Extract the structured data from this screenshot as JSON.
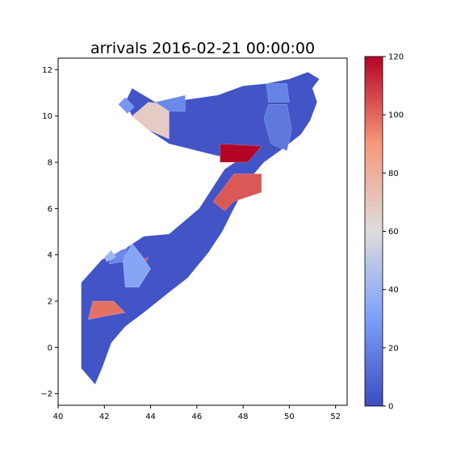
{
  "chart_data": {
    "type": "choropleth-map",
    "title": "arrivals 2016-02-21 00:00:00",
    "x_ticks": [
      40,
      42,
      44,
      46,
      48,
      50,
      52
    ],
    "y_ticks": [
      -2,
      0,
      2,
      4,
      6,
      8,
      10,
      12
    ],
    "xlim": [
      40,
      52.5
    ],
    "ylim": [
      -2.5,
      12.5
    ],
    "colormap": "coolwarm",
    "colorbar": {
      "min": 0,
      "max": 120,
      "ticks": [
        0,
        20,
        40,
        60,
        80,
        100,
        120
      ]
    },
    "regions": [
      {
        "coords": [
          [
            43.2,
            11.2
          ],
          [
            44.2,
            10.6
          ],
          [
            45.5,
            10.7
          ],
          [
            46.9,
            10.9
          ],
          [
            48.0,
            11.3
          ],
          [
            49.0,
            11.4
          ],
          [
            50.0,
            11.6
          ],
          [
            50.8,
            11.9
          ],
          [
            51.3,
            11.6
          ],
          [
            51.0,
            11.2
          ],
          [
            51.2,
            10.6
          ],
          [
            50.9,
            9.8
          ],
          [
            50.5,
            9.2
          ],
          [
            49.6,
            8.5
          ],
          [
            48.9,
            8.0
          ],
          [
            48.3,
            7.3
          ],
          [
            47.6,
            6.0
          ],
          [
            47.1,
            5.0
          ],
          [
            46.5,
            4.1
          ],
          [
            45.6,
            3.0
          ],
          [
            44.7,
            2.3
          ],
          [
            43.7,
            1.5
          ],
          [
            42.9,
            0.9
          ],
          [
            42.3,
            0.2
          ],
          [
            41.9,
            -0.9
          ],
          [
            41.6,
            -1.6
          ],
          [
            41.0,
            -0.9
          ],
          [
            41.0,
            1.3
          ],
          [
            41.0,
            2.8
          ],
          [
            41.9,
            3.8
          ],
          [
            42.8,
            4.2
          ],
          [
            43.7,
            4.8
          ],
          [
            44.8,
            4.9
          ],
          [
            46.1,
            6.0
          ],
          [
            47.2,
            7.7
          ],
          [
            47.8,
            8.1
          ],
          [
            46.8,
            8.3
          ],
          [
            45.6,
            8.6
          ],
          [
            44.8,
            8.8
          ],
          [
            43.9,
            9.4
          ],
          [
            43.2,
            10.0
          ],
          [
            42.9,
            10.6
          ]
        ],
        "value": 3
      },
      {
        "coords": [
          [
            47.0,
            8.0
          ],
          [
            48.2,
            8.0
          ],
          [
            48.8,
            8.7
          ],
          [
            47.0,
            8.8
          ]
        ],
        "value": 120
      },
      {
        "coords": [
          [
            46.7,
            6.3
          ],
          [
            47.6,
            7.5
          ],
          [
            48.8,
            7.5
          ],
          [
            48.8,
            6.7
          ],
          [
            47.6,
            6.3
          ],
          [
            47.2,
            5.9
          ]
        ],
        "value": 103
      },
      {
        "coords": [
          [
            43.4,
            3.7
          ],
          [
            43.9,
            3.9
          ],
          [
            43.7,
            3.5
          ],
          [
            43.2,
            3.5
          ]
        ],
        "value": 103
      },
      {
        "coords": [
          [
            41.3,
            1.2
          ],
          [
            42.3,
            1.4
          ],
          [
            42.9,
            1.5
          ],
          [
            42.4,
            2.0
          ],
          [
            41.5,
            2.0
          ]
        ],
        "value": 98
      },
      {
        "coords": [
          [
            43.9,
            10.6
          ],
          [
            44.8,
            10.5
          ],
          [
            44.8,
            9.0
          ],
          [
            43.9,
            9.4
          ],
          [
            43.2,
            10.0
          ]
        ],
        "value": 68
      },
      {
        "coords": [
          [
            44.2,
            10.6
          ],
          [
            45.5,
            10.9
          ],
          [
            45.5,
            10.2
          ],
          [
            44.8,
            10.2
          ]
        ],
        "value": 22
      },
      {
        "coords": [
          [
            49.0,
            11.4
          ],
          [
            49.9,
            11.4
          ],
          [
            50.0,
            10.6
          ],
          [
            49.1,
            10.6
          ]
        ],
        "value": 20
      },
      {
        "coords": [
          [
            49.1,
            10.5
          ],
          [
            49.9,
            10.5
          ],
          [
            50.1,
            9.4
          ],
          [
            49.9,
            8.5
          ],
          [
            49.2,
            8.8
          ],
          [
            48.9,
            9.9
          ]
        ],
        "value": 16
      },
      {
        "coords": [
          [
            42.9,
            10.8
          ],
          [
            43.3,
            10.4
          ],
          [
            43.0,
            10.1
          ],
          [
            42.6,
            10.5
          ]
        ],
        "value": 27
      },
      {
        "coords": [
          [
            42.8,
            3.8
          ],
          [
            43.2,
            4.5
          ],
          [
            43.6,
            4.0
          ],
          [
            44.0,
            3.4
          ],
          [
            43.5,
            2.6
          ],
          [
            42.9,
            2.6
          ]
        ],
        "value": 33
      },
      {
        "coords": [
          [
            42.2,
            3.6
          ],
          [
            42.8,
            3.7
          ],
          [
            43.0,
            4.3
          ],
          [
            42.7,
            4.2
          ],
          [
            42.3,
            3.9
          ]
        ],
        "value": 22
      },
      {
        "coords": [
          [
            42.0,
            3.9
          ],
          [
            42.3,
            4.2
          ],
          [
            42.5,
            3.9
          ],
          [
            42.1,
            3.7
          ]
        ],
        "value": 41
      }
    ]
  }
}
